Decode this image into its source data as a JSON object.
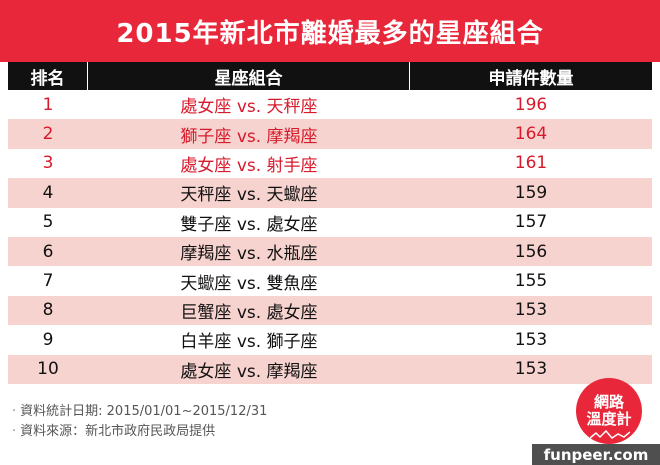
{
  "title": "2015年新北市離婚最多的星座組合",
  "table": {
    "headers": {
      "rank": "排名",
      "combo": "星座組合",
      "count": "申請件數量"
    },
    "rows": [
      {
        "rank": "1",
        "combo": "處女座 vs. 天秤座",
        "count": "196",
        "highlight": true
      },
      {
        "rank": "2",
        "combo": "獅子座 vs. 摩羯座",
        "count": "164",
        "highlight": true
      },
      {
        "rank": "3",
        "combo": "處女座 vs. 射手座",
        "count": "161",
        "highlight": true
      },
      {
        "rank": "4",
        "combo": "天秤座 vs. 天蠍座",
        "count": "159",
        "highlight": false
      },
      {
        "rank": "5",
        "combo": "雙子座 vs. 處女座",
        "count": "157",
        "highlight": false
      },
      {
        "rank": "6",
        "combo": "摩羯座 vs. 水瓶座",
        "count": "156",
        "highlight": false
      },
      {
        "rank": "7",
        "combo": "天蠍座 vs. 雙魚座",
        "count": "155",
        "highlight": false
      },
      {
        "rank": "8",
        "combo": "巨蟹座 vs. 處女座",
        "count": "153",
        "highlight": false
      },
      {
        "rank": "9",
        "combo": "白羊座 vs. 獅子座",
        "count": "153",
        "highlight": false
      },
      {
        "rank": "10",
        "combo": "處女座 vs. 摩羯座",
        "count": "153",
        "highlight": false
      }
    ]
  },
  "footer": {
    "date_line": "資料統計日期: 2015/01/01~2015/12/31",
    "source_line": "資料來源：新北市政府民政局提供"
  },
  "logo": {
    "line1": "網路",
    "line2": "溫度計"
  },
  "watermark": "funpeer.com",
  "colors": {
    "title_bg": "#e8283a",
    "highlight_text": "#d8192b",
    "stripe": "#f7d3cf",
    "header_bg": "#111111"
  }
}
